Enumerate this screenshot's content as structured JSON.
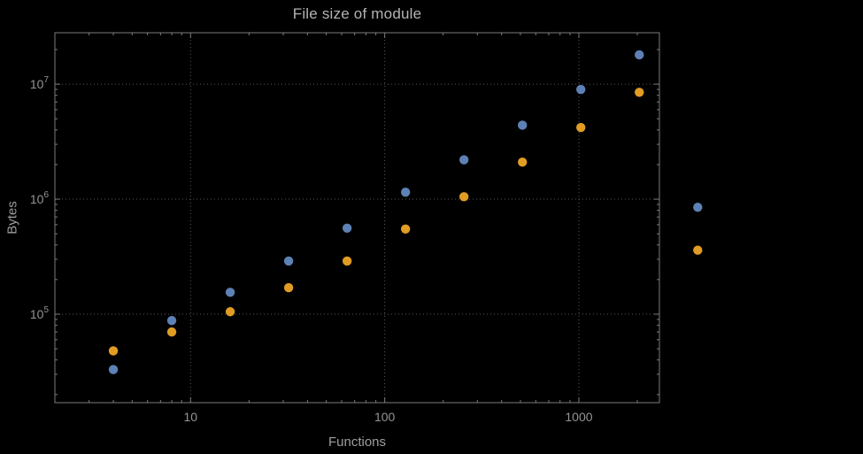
{
  "page": {
    "background": "#000000"
  },
  "chart": {
    "title": "File size of module",
    "xlabel": "Functions",
    "ylabel": "Bytes"
  },
  "colors": {
    "background": "#000000",
    "frame": "#7d7d7d",
    "grid": "#585858",
    "tick_text": "#949494",
    "title_text": "#b3b3b3",
    "label_text": "#9e9e9e",
    "series_blue": "#5e81b5",
    "series_orange": "#e19c24"
  },
  "chart_data": {
    "type": "scatter",
    "title": "File size of module",
    "xlabel": "Functions",
    "ylabel": "Bytes",
    "xscale": "log",
    "yscale": "log",
    "grid": true,
    "grid_style": "dotted",
    "legend": "none",
    "xlim": [
      2,
      2600
    ],
    "ylim": [
      17000,
      28000000
    ],
    "xticks": [
      10,
      100,
      1000
    ],
    "yticks": [
      100000,
      1000000,
      10000000
    ],
    "x": [
      4,
      8,
      16,
      32,
      64,
      128,
      256,
      512,
      1024,
      2048,
      4096
    ],
    "series": [
      {
        "name": "series-blue",
        "color": "#5e81b5",
        "values": [
          33000,
          88000,
          155000,
          290000,
          560000,
          1150000,
          2200000,
          4400000,
          9000000,
          18000000,
          850000
        ]
      },
      {
        "name": "series-orange",
        "color": "#e19c24",
        "values": [
          48000,
          70000,
          105000,
          170000,
          290000,
          550000,
          1050000,
          2100000,
          4200000,
          8500000,
          360000
        ]
      }
    ]
  }
}
